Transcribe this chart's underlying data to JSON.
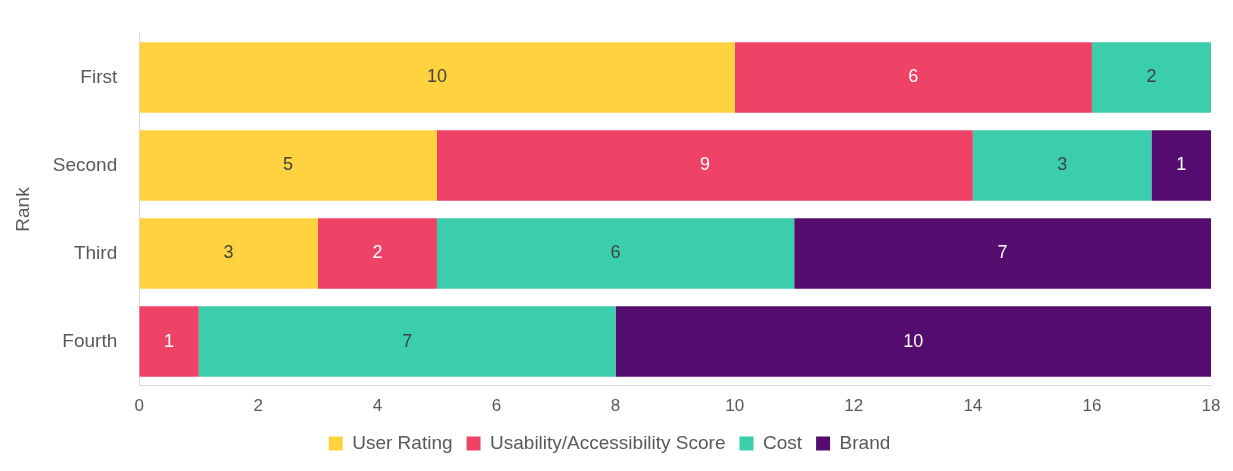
{
  "chart_data": {
    "type": "bar",
    "orientation": "horizontal",
    "stacked": true,
    "ylabel": "Rank",
    "categories": [
      "First",
      "Second",
      "Third",
      "Fourth"
    ],
    "series": [
      {
        "name": "User Rating",
        "color": "#ffd23f",
        "values": [
          10,
          5,
          3,
          null
        ]
      },
      {
        "name": "Usability/Accessibility Score",
        "color": "#ee4266",
        "values": [
          6,
          9,
          2,
          1
        ]
      },
      {
        "name": "Cost",
        "color": "#3bceac",
        "values": [
          2,
          3,
          6,
          7
        ]
      },
      {
        "name": "Brand",
        "color": "#540d6e",
        "values": [
          null,
          1,
          7,
          10
        ]
      }
    ],
    "xlim": [
      0,
      18
    ],
    "xticks": [
      0,
      2,
      4,
      6,
      8,
      10,
      12,
      14,
      16,
      18
    ],
    "grid": false,
    "legend": "bottom",
    "data_labels": true
  }
}
